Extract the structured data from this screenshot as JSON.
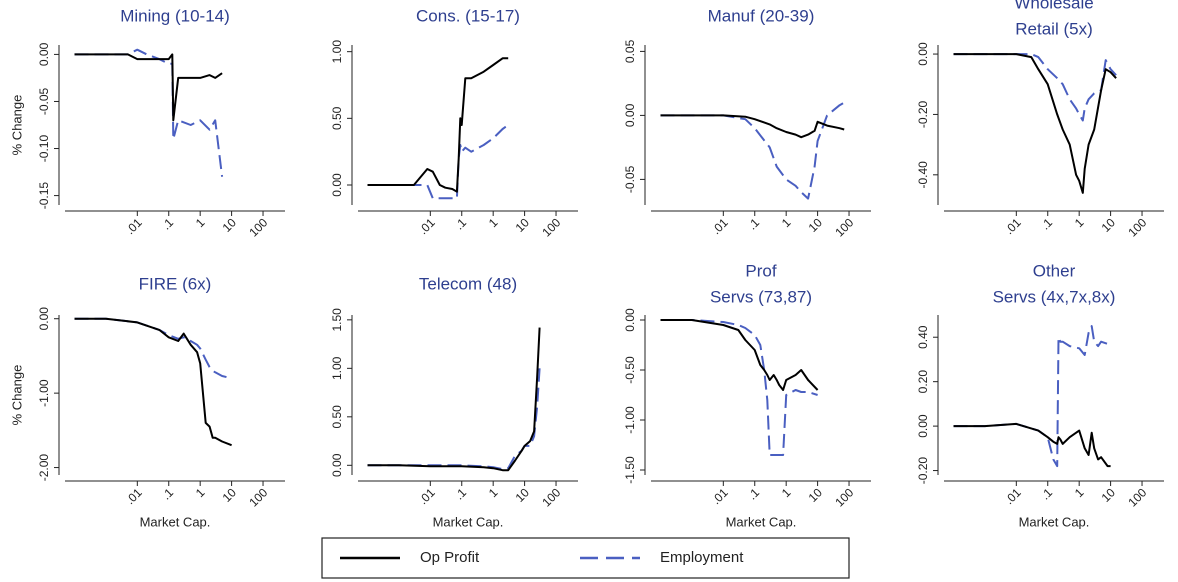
{
  "chart_data": [
    {
      "type": "line",
      "title": [
        "Mining (10-14)"
      ],
      "ylabel": "% Change",
      "xscale": "log",
      "xlim": [
        5e-05,
        500
      ],
      "xticks": [
        {
          "value": 0.01,
          "label": ".01"
        },
        {
          "value": 0.1,
          "label": ".1"
        },
        1,
        10,
        100
      ],
      "ylim": [
        -0.16,
        0.01
      ],
      "yticks": [
        {
          "value": 0,
          "label": "0.00"
        },
        {
          "value": -0.05,
          "label": "-0.05"
        },
        {
          "value": -0.1,
          "label": "-0.10"
        },
        {
          "value": -0.15,
          "label": "-0.15"
        }
      ],
      "x": [
        0.0001,
        0.001,
        0.005,
        0.01,
        0.02,
        0.05,
        0.1,
        0.13,
        0.14,
        0.2,
        0.5,
        1,
        2,
        3,
        5
      ],
      "series": [
        {
          "name": "Op Profit",
          "color": "#000000",
          "dashed": false,
          "values": [
            0,
            0,
            0,
            -0.005,
            -0.005,
            -0.005,
            -0.005,
            0,
            -0.07,
            -0.025,
            -0.025,
            -0.025,
            -0.022,
            -0.025,
            -0.02
          ]
        },
        {
          "name": "Employment",
          "color": "#4a5fc1",
          "dashed": true,
          "values": [
            0,
            0,
            0,
            0.005,
            0,
            -0.005,
            -0.01,
            -0.01,
            -0.09,
            -0.07,
            -0.075,
            -0.07,
            -0.08,
            -0.07,
            -0.13
          ]
        }
      ]
    },
    {
      "type": "line",
      "title": [
        "Cons. (15-17)"
      ],
      "xscale": "log",
      "xlim": [
        5e-05,
        500
      ],
      "xticks": [
        {
          "value": 0.01,
          "label": ".01"
        },
        {
          "value": 0.1,
          "label": ".1"
        },
        1,
        10,
        100
      ],
      "ylim": [
        -0.15,
        1.05
      ],
      "yticks": [
        {
          "value": 0,
          "label": "0.00"
        },
        {
          "value": 0.5,
          "label": "0.50"
        },
        {
          "value": 1,
          "label": "1.00"
        }
      ],
      "x": [
        0.0001,
        0.003,
        0.008,
        0.012,
        0.02,
        0.03,
        0.05,
        0.07,
        0.08,
        0.09,
        0.1,
        0.13,
        0.2,
        0.5,
        1,
        2,
        3
      ],
      "series": [
        {
          "name": "Op Profit",
          "color": "#000000",
          "dashed": false,
          "values": [
            0,
            0,
            0.12,
            0.1,
            0,
            -0.02,
            -0.03,
            -0.05,
            0.2,
            0.5,
            0.45,
            0.8,
            0.8,
            0.85,
            0.9,
            0.95,
            0.95
          ]
        },
        {
          "name": "Employment",
          "color": "#4a5fc1",
          "dashed": true,
          "values": [
            0,
            0,
            0,
            -0.1,
            -0.1,
            -0.1,
            -0.1,
            -0.1,
            0.2,
            0.3,
            0.25,
            0.28,
            0.25,
            0.3,
            0.35,
            0.42,
            0.45
          ]
        }
      ]
    },
    {
      "type": "line",
      "title": [
        "Manuf (20-39)"
      ],
      "xscale": "log",
      "xlim": [
        5e-05,
        500
      ],
      "xticks": [
        {
          "value": 0.01,
          "label": ".01"
        },
        {
          "value": 0.1,
          "label": ".1"
        },
        1,
        10,
        100
      ],
      "ylim": [
        -0.07,
        0.055
      ],
      "yticks": [
        {
          "value": 0.05,
          "label": "0.05"
        },
        {
          "value": 0,
          "label": "0.00"
        },
        {
          "value": -0.05,
          "label": "-0.05"
        }
      ],
      "x": [
        0.0001,
        0.001,
        0.01,
        0.05,
        0.1,
        0.3,
        0.5,
        1,
        2,
        3,
        5,
        8,
        10,
        20,
        50,
        70
      ],
      "series": [
        {
          "name": "Op Profit",
          "color": "#000000",
          "dashed": false,
          "values": [
            0,
            0,
            0,
            -0.001,
            -0.003,
            -0.007,
            -0.01,
            -0.013,
            -0.015,
            -0.017,
            -0.015,
            -0.012,
            -0.005,
            -0.008,
            -0.01,
            -0.011
          ]
        },
        {
          "name": "Employment",
          "color": "#4a5fc1",
          "dashed": true,
          "values": [
            0,
            0,
            0,
            -0.003,
            -0.01,
            -0.025,
            -0.04,
            -0.05,
            -0.055,
            -0.06,
            -0.065,
            -0.04,
            -0.02,
            0,
            0.008,
            0.01
          ]
        }
      ]
    },
    {
      "type": "line",
      "title": [
        "Wholesale",
        "Retail (5x)"
      ],
      "xscale": "log",
      "xlim": [
        5e-05,
        500
      ],
      "xticks": [
        {
          "value": 0.01,
          "label": ".01"
        },
        {
          "value": 0.1,
          "label": ".1"
        },
        1,
        10,
        100
      ],
      "ylim": [
        -0.5,
        0.03
      ],
      "yticks": [
        {
          "value": 0,
          "label": "0.00"
        },
        {
          "value": -0.2,
          "label": "-0.20"
        },
        {
          "value": -0.4,
          "label": "-0.40"
        }
      ],
      "x": [
        0.0001,
        0.001,
        0.01,
        0.03,
        0.05,
        0.1,
        0.2,
        0.3,
        0.5,
        0.8,
        1,
        1.3,
        1.5,
        2,
        3,
        5,
        7,
        10,
        15
      ],
      "series": [
        {
          "name": "Op Profit",
          "color": "#000000",
          "dashed": false,
          "values": [
            0,
            0,
            0,
            -0.01,
            -0.05,
            -0.1,
            -0.2,
            -0.25,
            -0.3,
            -0.4,
            -0.42,
            -0.46,
            -0.38,
            -0.3,
            -0.25,
            -0.12,
            -0.05,
            -0.06,
            -0.08
          ]
        },
        {
          "name": "Employment",
          "color": "#4a5fc1",
          "dashed": true,
          "values": [
            0,
            0,
            0,
            0,
            -0.01,
            -0.05,
            -0.08,
            -0.1,
            -0.15,
            -0.18,
            -0.2,
            -0.22,
            -0.18,
            -0.15,
            -0.13,
            -0.12,
            -0.02,
            -0.05,
            -0.07
          ]
        }
      ]
    },
    {
      "type": "line",
      "title": [
        "FIRE (6x)"
      ],
      "ylabel": "% Change",
      "xlabel": "Market Cap.",
      "xscale": "log",
      "xlim": [
        5e-05,
        500
      ],
      "xticks": [
        {
          "value": 0.01,
          "label": ".01"
        },
        {
          "value": 0.1,
          "label": ".1"
        },
        1,
        10,
        100
      ],
      "ylim": [
        -2.1,
        0.05
      ],
      "yticks": [
        {
          "value": 0,
          "label": "0.00"
        },
        {
          "value": -1,
          "label": "-1.00"
        },
        {
          "value": -2,
          "label": "-2.00"
        }
      ],
      "x": [
        0.0001,
        0.001,
        0.01,
        0.05,
        0.1,
        0.2,
        0.3,
        0.5,
        0.8,
        1,
        1.5,
        2,
        2.5,
        3,
        5,
        10
      ],
      "series": [
        {
          "name": "Op Profit",
          "color": "#000000",
          "dashed": false,
          "values": [
            0,
            0,
            -0.05,
            -0.15,
            -0.25,
            -0.3,
            -0.2,
            -0.35,
            -0.45,
            -0.6,
            -1.4,
            -1.45,
            -1.6,
            -1.6,
            -1.65,
            -1.7
          ]
        },
        {
          "name": "Employment",
          "color": "#4a5fc1",
          "dashed": true,
          "values": [
            0,
            0,
            -0.05,
            -0.15,
            -0.22,
            -0.27,
            -0.25,
            -0.3,
            -0.35,
            -0.4,
            -0.55,
            -0.65,
            -0.7,
            -0.72,
            -0.77,
            -0.8
          ]
        }
      ]
    },
    {
      "type": "line",
      "title": [
        "Telecom (48)"
      ],
      "xlabel": "Market Cap.",
      "xscale": "log",
      "xlim": [
        5e-05,
        500
      ],
      "xticks": [
        {
          "value": 0.01,
          "label": ".01"
        },
        {
          "value": 0.1,
          "label": ".1"
        },
        1,
        10,
        100
      ],
      "ylim": [
        -0.1,
        1.55
      ],
      "yticks": [
        {
          "value": 0,
          "label": "0.00"
        },
        {
          "value": 0.5,
          "label": "0.50"
        },
        {
          "value": 1,
          "label": "1.00"
        },
        {
          "value": 1.5,
          "label": "1.50"
        }
      ],
      "x": [
        0.0001,
        0.001,
        0.01,
        0.1,
        0.5,
        1,
        2,
        3,
        5,
        8,
        10,
        15,
        20,
        25,
        30
      ],
      "series": [
        {
          "name": "Op Profit",
          "color": "#000000",
          "dashed": false,
          "values": [
            0,
            0,
            -0.01,
            -0.01,
            -0.02,
            -0.03,
            -0.05,
            -0.05,
            0.05,
            0.15,
            0.2,
            0.25,
            0.35,
            0.9,
            1.42
          ]
        },
        {
          "name": "Employment",
          "color": "#4a5fc1",
          "dashed": true,
          "values": [
            0,
            0,
            0,
            0,
            -0.01,
            -0.02,
            -0.04,
            -0.03,
            0.1,
            0.15,
            0.2,
            0.2,
            0.3,
            0.6,
            1.0
          ]
        }
      ]
    },
    {
      "type": "line",
      "title": [
        "Prof",
        "Servs (73,87)"
      ],
      "xlabel": "Market Cap.",
      "xscale": "log",
      "xlim": [
        5e-05,
        500
      ],
      "xticks": [
        {
          "value": 0.01,
          "label": ".01"
        },
        {
          "value": 0.1,
          "label": ".1"
        },
        1,
        10,
        100
      ],
      "ylim": [
        -1.55,
        0.05
      ],
      "yticks": [
        {
          "value": 0,
          "label": "0.00"
        },
        {
          "value": -0.5,
          "label": "-0.50"
        },
        {
          "value": -1,
          "label": "-1.00"
        },
        {
          "value": -1.5,
          "label": "-1.50"
        }
      ],
      "x": [
        0.0001,
        0.001,
        0.01,
        0.03,
        0.05,
        0.1,
        0.15,
        0.2,
        0.25,
        0.3,
        0.4,
        0.5,
        0.6,
        0.8,
        1,
        2,
        3,
        5,
        10
      ],
      "series": [
        {
          "name": "Op Profit",
          "color": "#000000",
          "dashed": false,
          "values": [
            0,
            0,
            -0.05,
            -0.1,
            -0.2,
            -0.3,
            -0.45,
            -0.5,
            -0.55,
            -0.6,
            -0.55,
            -0.6,
            -0.65,
            -0.7,
            -0.6,
            -0.55,
            -0.5,
            -0.6,
            -0.7
          ]
        },
        {
          "name": "Employment",
          "color": "#4a5fc1",
          "dashed": true,
          "values": [
            0,
            0,
            -0.02,
            -0.05,
            -0.08,
            -0.15,
            -0.25,
            -0.5,
            -0.8,
            -1.35,
            -1.35,
            -1.35,
            -1.35,
            -1.35,
            -0.75,
            -0.7,
            -0.72,
            -0.72,
            -0.75
          ]
        }
      ]
    },
    {
      "type": "line",
      "title": [
        "Other",
        "Servs (4x,7x,8x)"
      ],
      "xlabel": "Market Cap.",
      "xscale": "log",
      "xlim": [
        5e-05,
        500
      ],
      "xticks": [
        {
          "value": 0.01,
          "label": ".01"
        },
        {
          "value": 0.1,
          "label": ".1"
        },
        1,
        10,
        100
      ],
      "ylim": [
        -0.22,
        0.5
      ],
      "yticks": [
        {
          "value": 0.4,
          "label": "0.40"
        },
        {
          "value": 0.2,
          "label": "0.20"
        },
        {
          "value": 0,
          "label": "0.00"
        },
        {
          "value": -0.2,
          "label": "-0.20"
        }
      ],
      "x": [
        0.0001,
        0.001,
        0.01,
        0.05,
        0.1,
        0.15,
        0.2,
        0.22,
        0.25,
        0.3,
        0.5,
        1,
        1.5,
        2,
        2.5,
        3,
        4,
        5,
        8,
        10
      ],
      "series": [
        {
          "name": "Op Profit",
          "color": "#000000",
          "dashed": false,
          "values": [
            0,
            0,
            0.01,
            -0.02,
            -0.05,
            -0.07,
            -0.08,
            -0.05,
            -0.06,
            -0.08,
            -0.05,
            -0.02,
            -0.1,
            -0.13,
            -0.03,
            -0.1,
            -0.15,
            -0.14,
            -0.18,
            -0.18
          ]
        },
        {
          "name": "Employment",
          "color": "#4a5fc1",
          "dashed": true,
          "values": [
            0,
            0,
            0.01,
            -0.02,
            -0.05,
            -0.15,
            -0.18,
            0.4,
            0.38,
            0.38,
            0.36,
            0.35,
            0.32,
            0.42,
            0.45,
            0.38,
            0.36,
            0.38,
            0.37,
            0.37
          ]
        }
      ]
    }
  ]
}
